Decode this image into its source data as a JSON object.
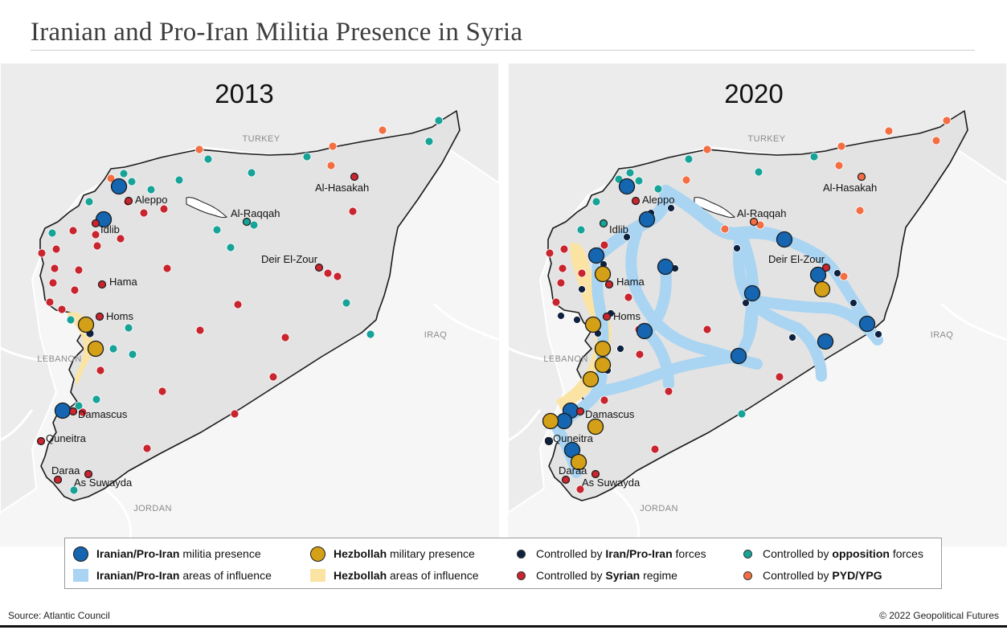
{
  "title": "Iranian and Pro-Iran Militia Presence in Syria",
  "source": "Source: Atlantic Council",
  "copyright": "© 2022 Geopolitical Futures",
  "colors": {
    "iran": "#1565b0",
    "hezbollah": "#d4a017",
    "iran_area": "#a9d4f2",
    "hezbollah_area": "#fbe4a3",
    "iran_controlled": "#0e2240",
    "opposition": "#17a398",
    "syrian_regime": "#c8252e",
    "pyd_ypg": "#f36e42",
    "syria_land": "#e3e3e3",
    "neighbors": "#efefef"
  },
  "countries": {
    "turkey": "TURKEY",
    "iraq": "IRAQ",
    "lebanon": "LEBANON",
    "jordan": "JORDAN"
  },
  "cities": {
    "aleppo": "Aleppo",
    "idlib": "Idlib",
    "alraqqah": "Al-Raqqah",
    "alhasakah": "Al-Hasakah",
    "deirelzour": "Deir El-Zour",
    "hama": "Hama",
    "homs": "Homs",
    "damascus": "Damascus",
    "quneitra": "Quneitra",
    "daraa": "Daraa",
    "assuwayda": "As Suwayda"
  },
  "maps": [
    {
      "year": "2013"
    },
    {
      "year": "2020"
    }
  ],
  "legend": [
    {
      "id": "iran-presence",
      "symbol": "big-circle",
      "color": "#1565b0",
      "bold": "Iranian/Pro-Iran",
      "rest": " militia presence"
    },
    {
      "id": "hezbollah-presence",
      "symbol": "big-circle",
      "color": "#d4a017",
      "bold": "Hezbollah",
      "rest": " military presence"
    },
    {
      "id": "iran-control",
      "symbol": "small-circle",
      "color": "#0e2240",
      "before": "Controlled by ",
      "bold": "Iran/Pro-Iran",
      "rest": " forces"
    },
    {
      "id": "opposition-control",
      "symbol": "small-circle",
      "color": "#17a398",
      "before": "Controlled by ",
      "bold": "opposition",
      "rest": " forces"
    },
    {
      "id": "iran-areas",
      "symbol": "rect",
      "color": "#a9d4f2",
      "bold": "Iranian/Pro-Iran",
      "rest": " areas of influence"
    },
    {
      "id": "hezbollah-areas",
      "symbol": "rect",
      "color": "#fbe4a3",
      "bold": "Hezbollah",
      "rest": " areas of influence"
    },
    {
      "id": "regime-control",
      "symbol": "small-circle",
      "color": "#c8252e",
      "before": "Controlled by ",
      "bold": "Syrian",
      "rest": " regime"
    },
    {
      "id": "pyd-control",
      "symbol": "small-circle",
      "color": "#f36e42",
      "before": "Controlled by ",
      "bold": "PYD/YPG",
      "rest": ""
    }
  ]
}
